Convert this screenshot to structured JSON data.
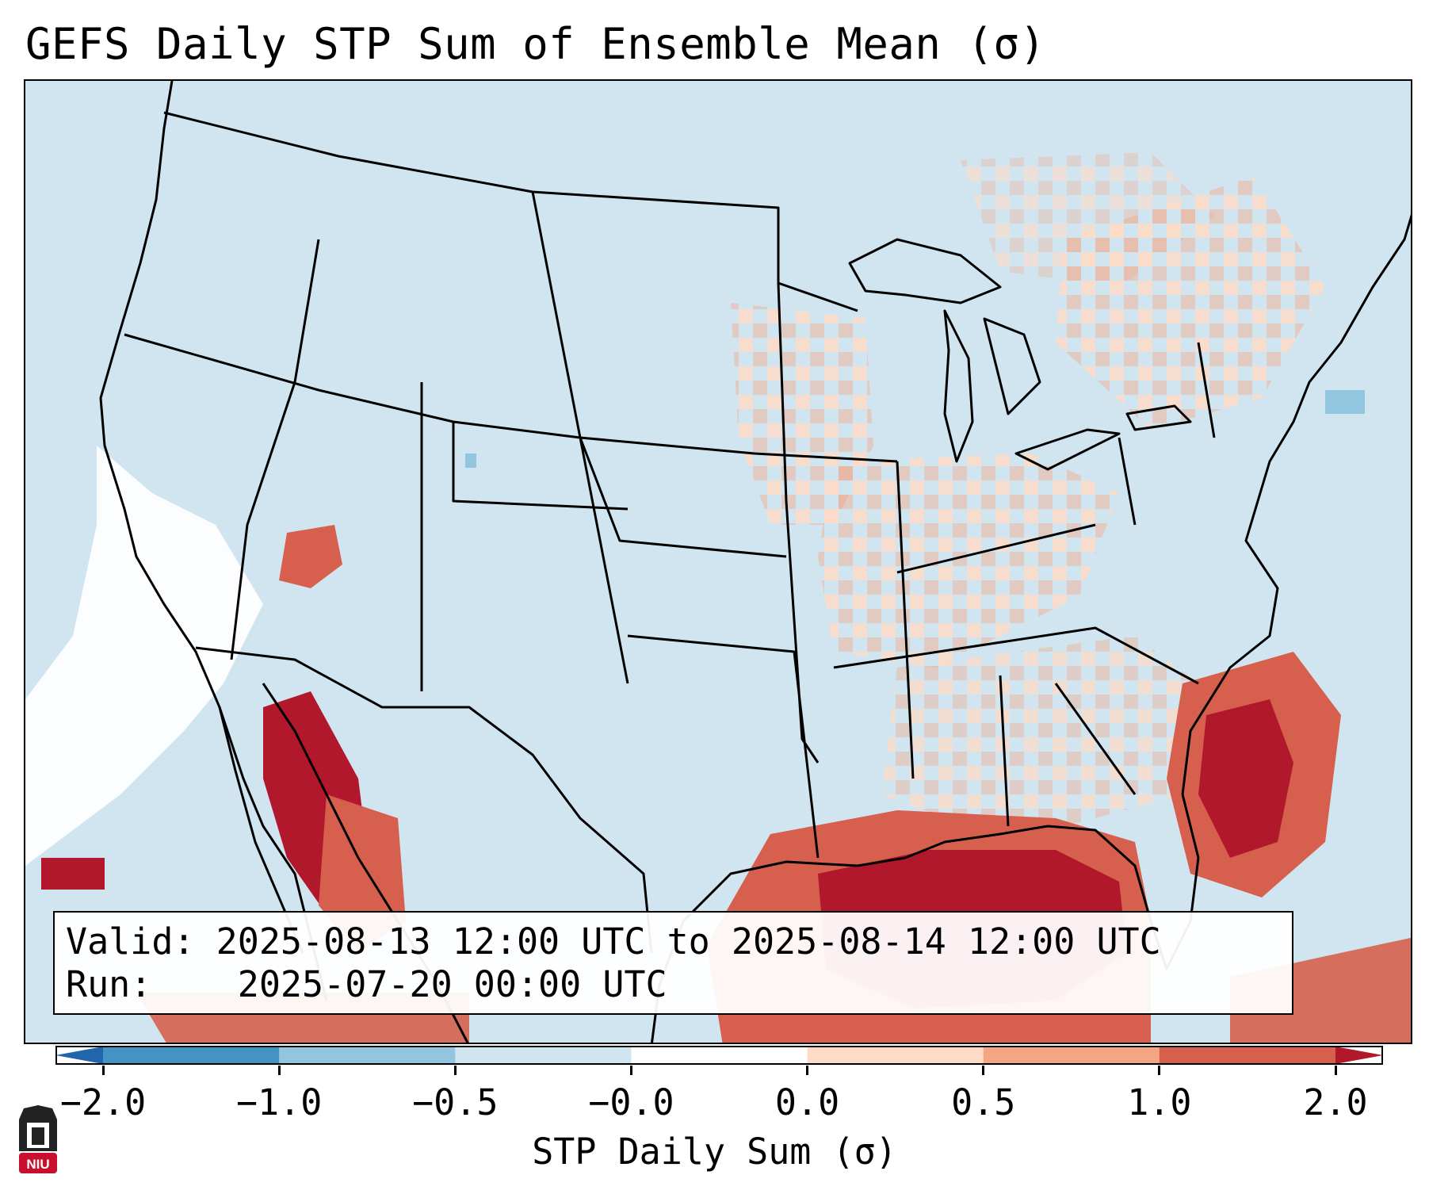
{
  "title": "GEFS Daily STP Sum of Ensemble Mean (σ)",
  "info": {
    "valid_label": "Valid:",
    "valid_value": "2025-08-13 12:00 UTC to 2025-08-14 12:00 UTC",
    "run_label": "Run:",
    "run_value": "2025-07-20 00:00 UTC"
  },
  "colorbar": {
    "label": "STP Daily Sum (σ)",
    "tick_labels": [
      "−2.0",
      "−1.0",
      "−0.5",
      "−0.0",
      "0.0",
      "0.5",
      "1.0",
      "2.0"
    ],
    "colors": [
      "#2166ac",
      "#4393c3",
      "#92c5de",
      "#d1e5f0",
      "#ffffff",
      "#fddbc7",
      "#f4a582",
      "#d6604d",
      "#b2182b"
    ],
    "extend": "both"
  },
  "map": {
    "region": "Continental United States",
    "background_color": "#d1e5f0",
    "highlight_areas": [
      {
        "name": "Gulf of Mexico",
        "level": 2.0
      },
      {
        "name": "Southeast Atlantic coast",
        "level": 2.0
      },
      {
        "name": "Gulf of California",
        "level": 2.0
      },
      {
        "name": "Upper Midwest",
        "level": 0.5
      },
      {
        "name": "Ohio Valley",
        "level": 0.5
      },
      {
        "name": "Northeast",
        "level": 0.5
      }
    ]
  },
  "logo": {
    "text": "NIU"
  }
}
